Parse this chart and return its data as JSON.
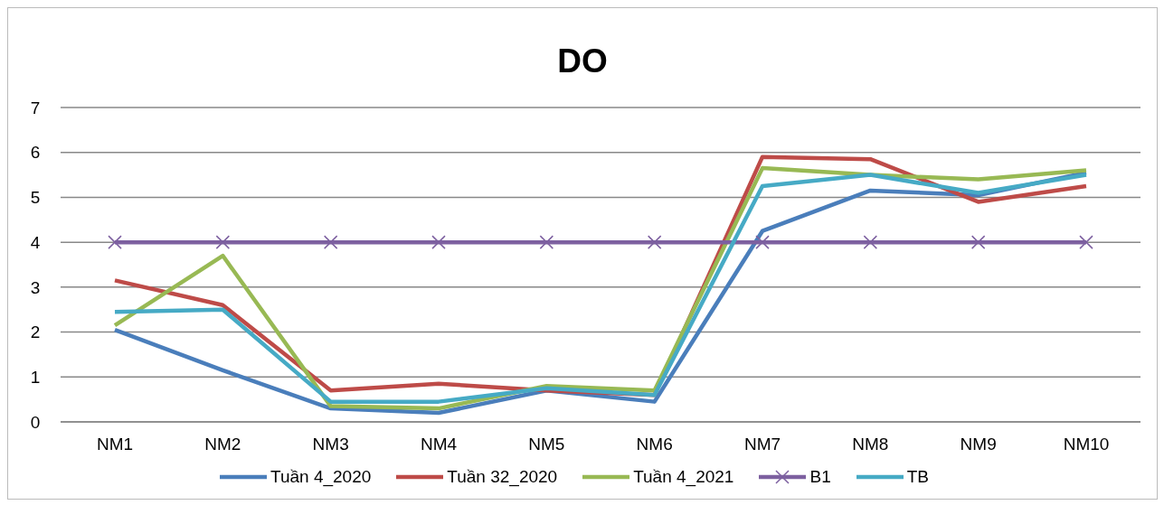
{
  "chart_data": {
    "type": "line",
    "title": "DO",
    "categories": [
      "NM1",
      "NM2",
      "NM3",
      "NM4",
      "NM5",
      "NM6",
      "NM7",
      "NM8",
      "NM9",
      "NM10"
    ],
    "series": [
      {
        "name": "Tuần 4_2020",
        "color": "#4a7ebb",
        "marker": "none",
        "values": [
          2.05,
          1.15,
          0.3,
          0.2,
          0.7,
          0.45,
          4.25,
          5.15,
          5.05,
          5.55
        ]
      },
      {
        "name": "Tuần 32_2020",
        "color": "#be4b48",
        "marker": "none",
        "values": [
          3.15,
          2.6,
          0.7,
          0.85,
          0.7,
          0.6,
          5.9,
          5.85,
          4.9,
          5.25
        ]
      },
      {
        "name": "Tuần 4_2021",
        "color": "#98b954",
        "marker": "none",
        "values": [
          2.15,
          3.7,
          0.35,
          0.3,
          0.8,
          0.7,
          5.65,
          5.5,
          5.4,
          5.6
        ]
      },
      {
        "name": "B1",
        "color": "#7d60a0",
        "marker": "cross",
        "values": [
          4,
          4,
          4,
          4,
          4,
          4,
          4,
          4,
          4,
          4
        ]
      },
      {
        "name": "TB",
        "color": "#46aac5",
        "marker": "none",
        "values": [
          2.45,
          2.5,
          0.45,
          0.45,
          0.75,
          0.6,
          5.25,
          5.5,
          5.1,
          5.5
        ]
      }
    ],
    "ylim": [
      0,
      7
    ],
    "yticks": [
      0,
      1,
      2,
      3,
      4,
      5,
      6,
      7
    ],
    "grid": "y",
    "legend": "bottom",
    "line_style": "solid"
  }
}
